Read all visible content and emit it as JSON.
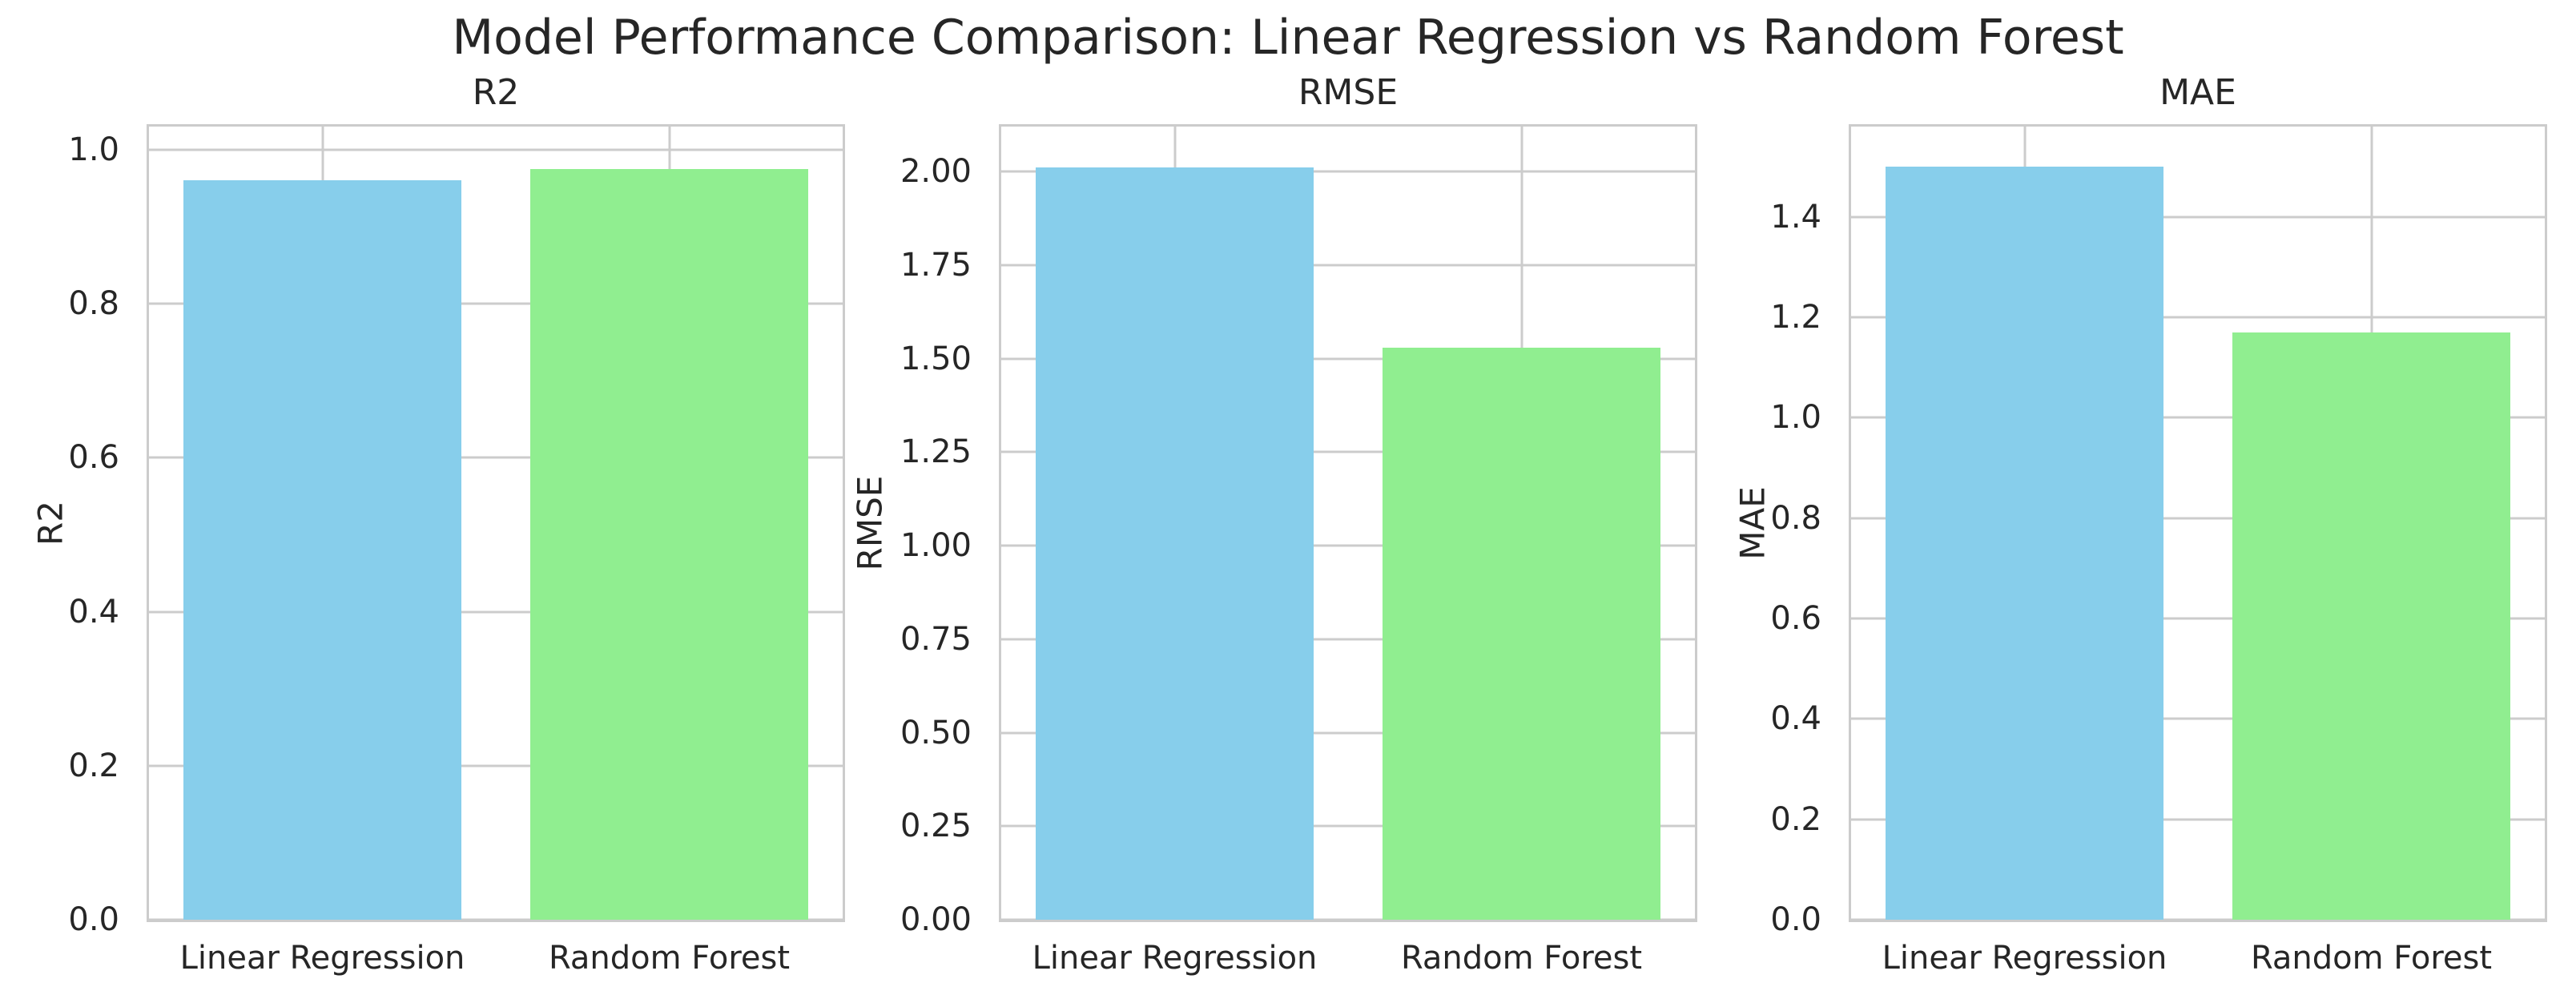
{
  "figure": {
    "title": "Model Performance Comparison: Linear Regression vs Random Forest"
  },
  "colors": {
    "linear_regression_bar": "#87CEEB",
    "random_forest_bar": "#90EE90",
    "grid": "#cccccc",
    "spine": "#cccccc",
    "text": "#262626",
    "background": "#ffffff"
  },
  "chart_data": [
    {
      "type": "bar",
      "title": "R2",
      "ylabel": "R2",
      "xlabel": "",
      "categories": [
        "Linear Regression",
        "Random Forest"
      ],
      "values": [
        0.96,
        0.975
      ],
      "bar_colors": [
        "#87CEEB",
        "#90EE90"
      ],
      "ylim": [
        0,
        1.03
      ],
      "ytick_labels": [
        "0.0",
        "0.2",
        "0.4",
        "0.6",
        "0.8",
        "1.0"
      ],
      "grid": true,
      "legend": false
    },
    {
      "type": "bar",
      "title": "RMSE",
      "ylabel": "RMSE",
      "xlabel": "",
      "categories": [
        "Linear Regression",
        "Random Forest"
      ],
      "values": [
        2.01,
        1.53
      ],
      "bar_colors": [
        "#87CEEB",
        "#90EE90"
      ],
      "ylim": [
        0,
        2.12
      ],
      "ytick_labels": [
        "0.00",
        "0.25",
        "0.50",
        "0.75",
        "1.00",
        "1.25",
        "1.50",
        "1.75",
        "2.00"
      ],
      "grid": true,
      "legend": false
    },
    {
      "type": "bar",
      "title": "MAE",
      "ylabel": "MAE",
      "xlabel": "",
      "categories": [
        "Linear Regression",
        "Random Forest"
      ],
      "values": [
        1.5,
        1.17
      ],
      "bar_colors": [
        "#87CEEB",
        "#90EE90"
      ],
      "ylim": [
        0,
        1.58
      ],
      "ytick_labels": [
        "0.0",
        "0.2",
        "0.4",
        "0.6",
        "0.8",
        "1.0",
        "1.2",
        "1.4"
      ],
      "grid": true,
      "legend": false
    }
  ]
}
